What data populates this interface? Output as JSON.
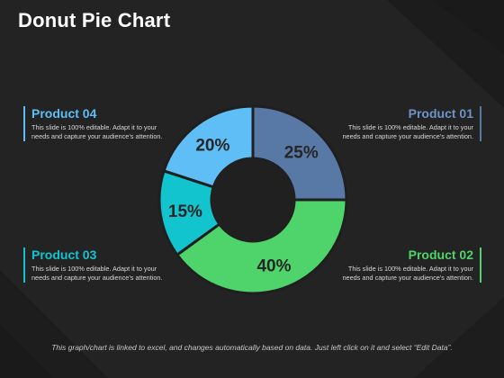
{
  "title": "Donut Pie Chart",
  "footer": "This graph/chart is linked to excel, and changes automatically based on data. Just left click on it and select “Edit Data”.",
  "colors": {
    "background": "#232323",
    "product_01": "#5878A6",
    "product_02": "#4ED46A",
    "product_03": "#12C4CE",
    "product_04": "#5EBEF5"
  },
  "labels": {
    "product_01": {
      "title": "Product 01",
      "desc_line1": "This slide is 100% editable. Adapt it to your",
      "desc_line2": "needs and capture your audience’s attention."
    },
    "product_02": {
      "title": "Product 02",
      "desc_line1": "This slide is 100% editable. Adapt it to your",
      "desc_line2": "needs and capture your audience’s attention."
    },
    "product_03": {
      "title": "Product 03",
      "desc_line1": "This slide is 100% editable. Adapt it to your",
      "desc_line2": "needs and capture your audience’s attention."
    },
    "product_04": {
      "title": "Product 04",
      "desc_line1": "This slide is 100% editable. Adapt it to your",
      "desc_line2": "needs and capture your audience’s attention."
    }
  },
  "chart_data": {
    "type": "pie",
    "title": "",
    "categories": [
      "Product 01",
      "Product 02",
      "Product 03",
      "Product 04"
    ],
    "values": [
      25,
      40,
      15,
      20
    ],
    "value_labels": [
      "25%",
      "40%",
      "15%",
      "20%"
    ],
    "colors": [
      "#5878A6",
      "#4ED46A",
      "#12C4CE",
      "#5EBEF5"
    ],
    "donut": true
  }
}
